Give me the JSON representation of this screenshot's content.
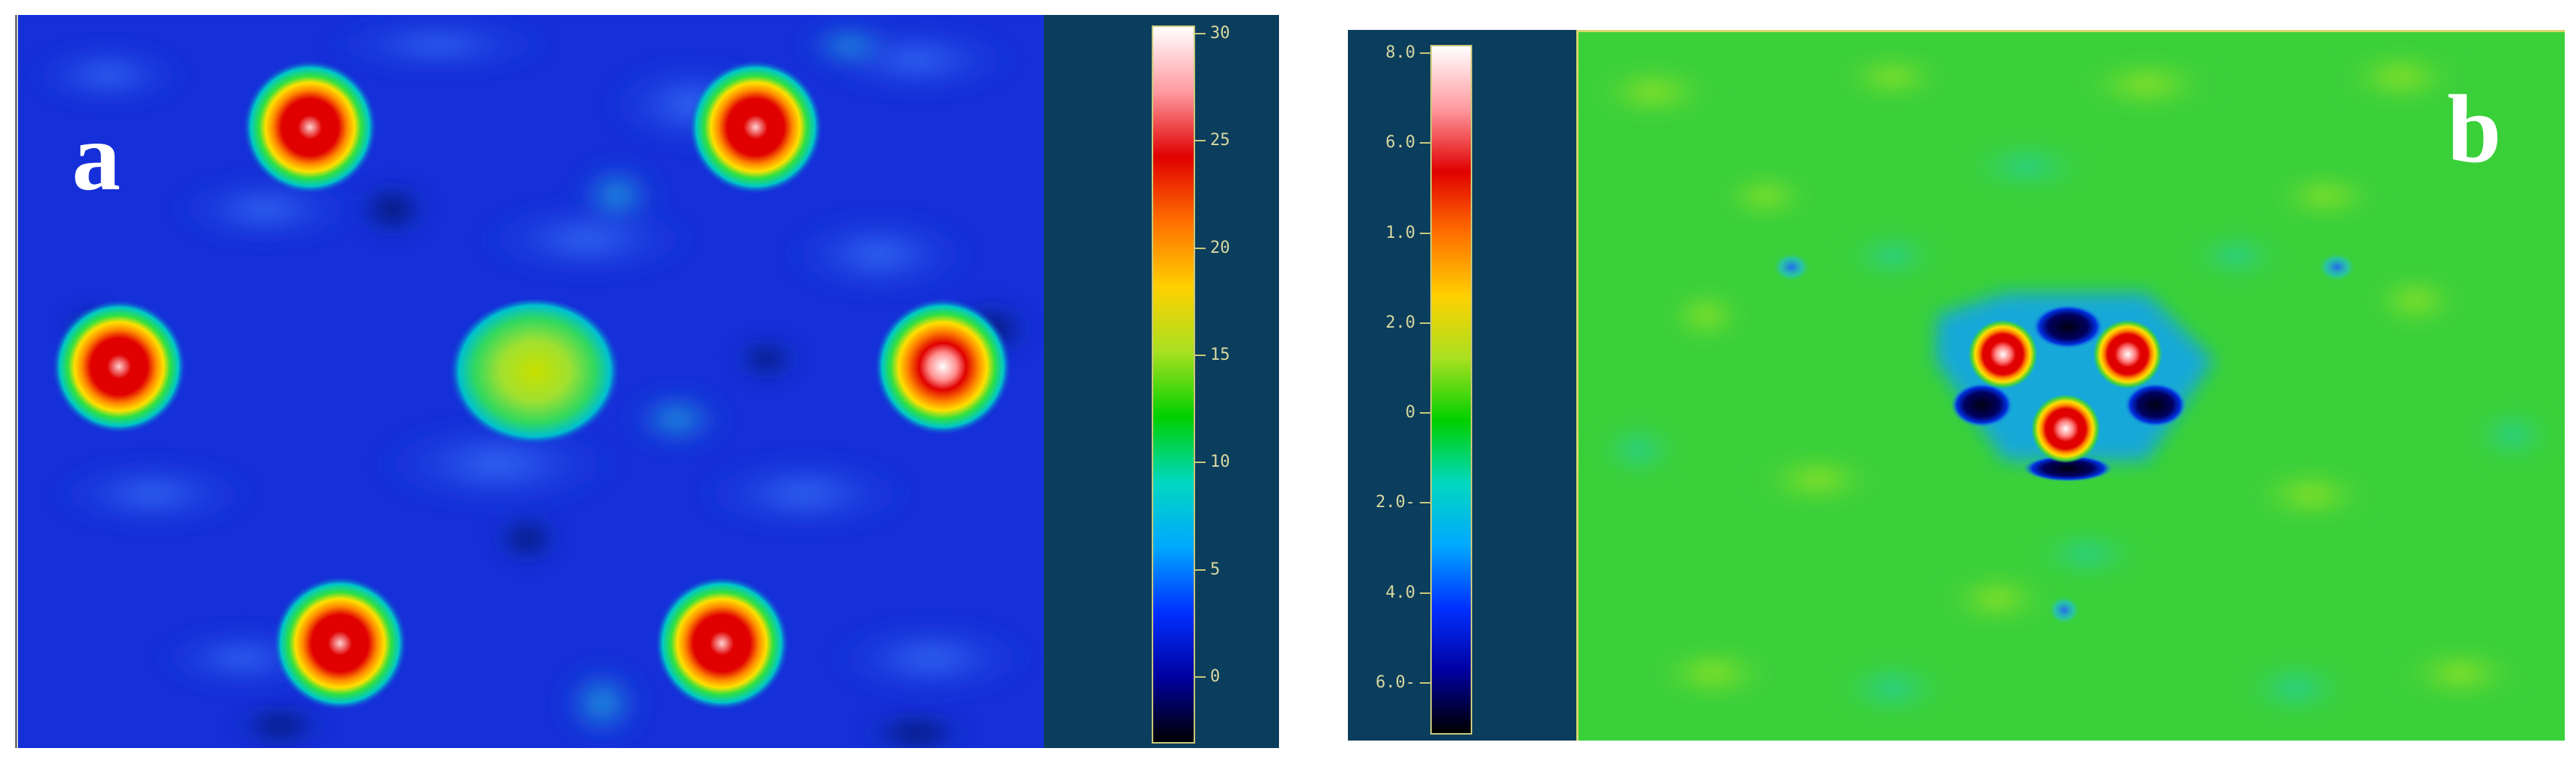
{
  "panel_a": {
    "label": "a",
    "colorbar": {
      "ticks": [
        "30",
        "25",
        "20",
        "15",
        "10",
        "5",
        "0"
      ],
      "stops": [
        "#ffffff",
        "#ff9aa0",
        "#e00000",
        "#ff7000",
        "#ffd000",
        "#a8e020",
        "#00d000",
        "#00d8c0",
        "#00a8ff",
        "#0030ff",
        "#0000a0",
        "#000000"
      ]
    },
    "background_color": "#1530d8"
  },
  "panel_b": {
    "label": "b",
    "colorbar": {
      "ticks": [
        "8.0",
        "6.0",
        "1.0",
        "2.0",
        "0",
        "2.0-",
        "4.0",
        "6.0-"
      ],
      "stops": [
        "#ffffff",
        "#ff9aa0",
        "#e00000",
        "#ff7000",
        "#ffd000",
        "#a8e020",
        "#00d000",
        "#00d8c0",
        "#00a8ff",
        "#0030ff",
        "#0000a0",
        "#000000"
      ]
    },
    "background_color": "#3ad03a"
  }
}
